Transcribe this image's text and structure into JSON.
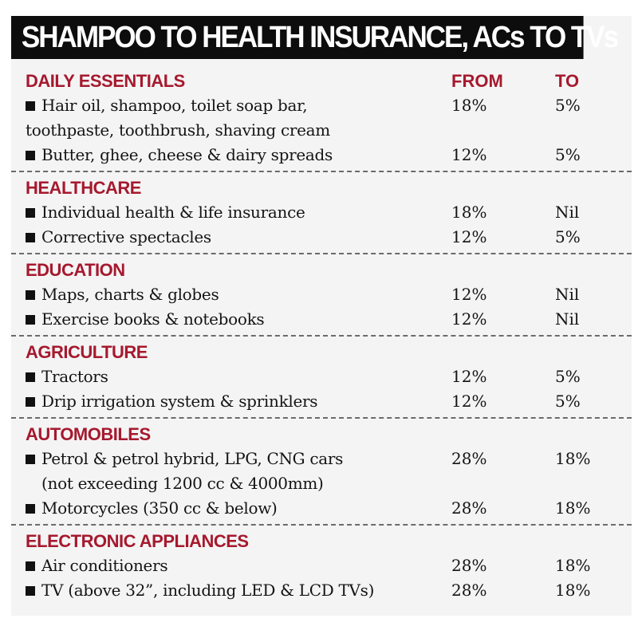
{
  "title": "SHAMPOO TO HEALTH INSURANCE, ACs TO TVs",
  "columns": {
    "from": "FROM",
    "to": "TO"
  },
  "sections": [
    {
      "name": "DAILY ESSENTIALS",
      "items": [
        {
          "label": "Hair oil, shampoo, toilet soap bar,",
          "label2": "toothpaste, toothbrush, shaving cream",
          "from": "18%",
          "to": "5%"
        },
        {
          "label": "Butter, ghee, cheese & dairy spreads",
          "from": "12%",
          "to": "5%"
        }
      ]
    },
    {
      "name": "HEALTHCARE",
      "items": [
        {
          "label": "Individual health & life insurance",
          "from": "18%",
          "to": "Nil"
        },
        {
          "label": "Corrective spectacles",
          "from": "12%",
          "to": "5%"
        }
      ]
    },
    {
      "name": "EDUCATION",
      "items": [
        {
          "label": "Maps, charts & globes",
          "from": "12%",
          "to": "Nil"
        },
        {
          "label": "Exercise books & notebooks",
          "from": "12%",
          "to": "Nil"
        }
      ]
    },
    {
      "name": "AGRICULTURE",
      "items": [
        {
          "label": "Tractors",
          "from": "12%",
          "to": "5%"
        },
        {
          "label": "Drip irrigation system & sprinklers",
          "from": "12%",
          "to": "5%"
        }
      ]
    },
    {
      "name": "AUTOMOBILES",
      "items": [
        {
          "label": "Petrol & petrol hybrid, LPG, CNG cars",
          "label2": "(not exceeding 1200 cc & 4000mm)",
          "from": "28%",
          "to": "18%"
        },
        {
          "label": "Motorcycles (350 cc & below)",
          "from": "28%",
          "to": "18%"
        }
      ]
    },
    {
      "name": "ELECTRONIC APPLIANCES",
      "items": [
        {
          "label": "Air conditioners",
          "from": "28%",
          "to": "18%"
        },
        {
          "label": "TV (above 32”, including LED & LCD TVs)",
          "from": "28%",
          "to": "18%"
        }
      ]
    }
  ]
}
